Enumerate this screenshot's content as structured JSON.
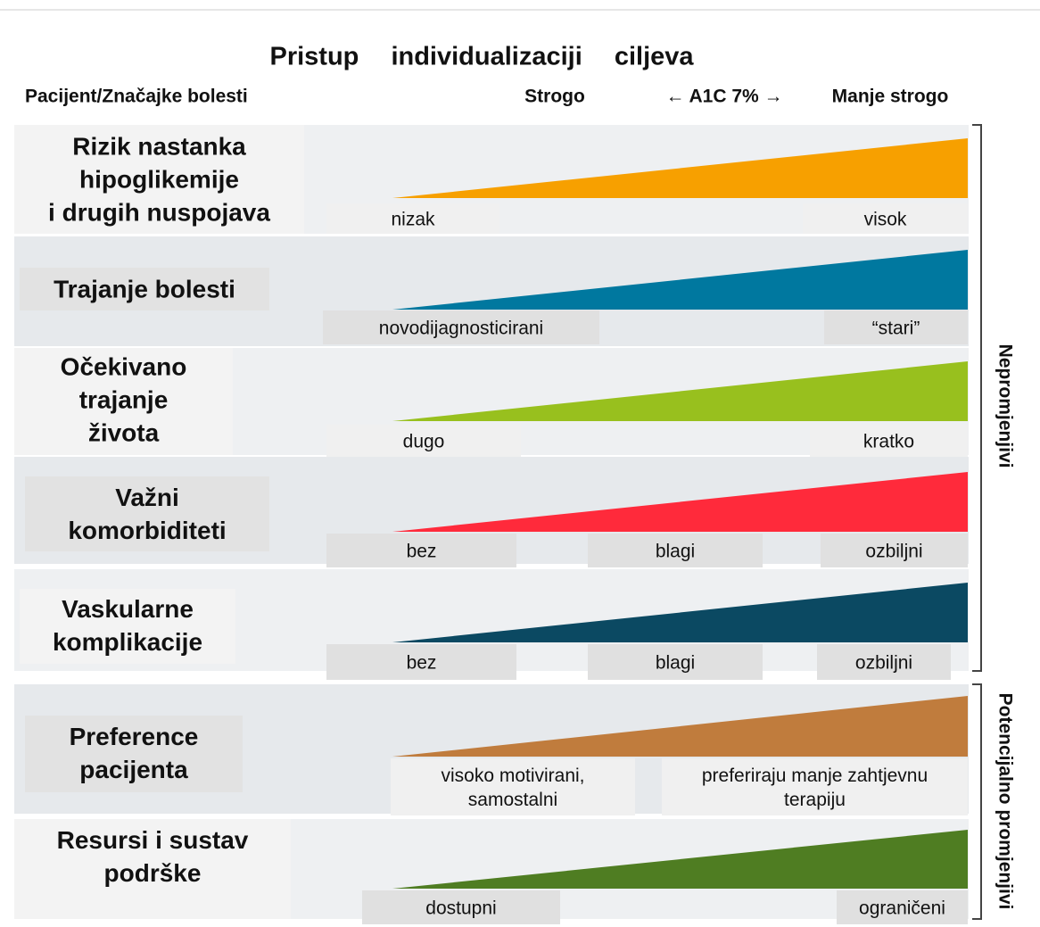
{
  "header": {
    "title": "Pristup individualizaciji ciljeva",
    "left": "Pacijent/Značajke bolesti",
    "strict": "Strogo",
    "axis": "← A1C 7% →",
    "lenient": "Manje strogo"
  },
  "rows": [
    {
      "label": [
        "Rizik nastanka",
        "hipoglikemije",
        "i drugih nuspojava"
      ],
      "color": "#f7a000",
      "scale": [
        [
          "nizak"
        ],
        [
          "visok"
        ]
      ]
    },
    {
      "label": [
        "Trajanje bolesti"
      ],
      "color": "#00789f",
      "scale": [
        [
          "novodijagnosticirani"
        ],
        [
          "“stari”"
        ]
      ]
    },
    {
      "label": [
        "Očekivano",
        "trajanje",
        "života"
      ],
      "color": "#98c01e",
      "scale": [
        [
          "dugo"
        ],
        [
          "kratko"
        ]
      ]
    },
    {
      "label": [
        "Važni",
        "komorbiditeti"
      ],
      "color": "#ff2a3b",
      "scale": [
        [
          "bez"
        ],
        [
          "blagi"
        ],
        [
          "ozbiljni"
        ]
      ]
    },
    {
      "label": [
        "Vaskularne",
        "komplikacije"
      ],
      "color": "#0b4962",
      "scale": [
        [
          "bez"
        ],
        [
          "blagi"
        ],
        [
          "ozbiljni"
        ]
      ]
    },
    {
      "label": [
        "Preference",
        "pacijenta"
      ],
      "color": "#c07c3d",
      "scale": [
        [
          "visoko motivirani,",
          "samostalni"
        ],
        [
          "preferiraju manje zahtjevnu",
          "terapiju"
        ]
      ]
    },
    {
      "label": [
        "Resursi i sustav",
        "podrške"
      ],
      "color": "#4f7d22",
      "scale": [
        [
          "dostupni"
        ],
        [
          "ograničeni"
        ]
      ]
    }
  ],
  "groups": [
    "Nepromjenjivi",
    "Potencijalno promjenjivi"
  ]
}
